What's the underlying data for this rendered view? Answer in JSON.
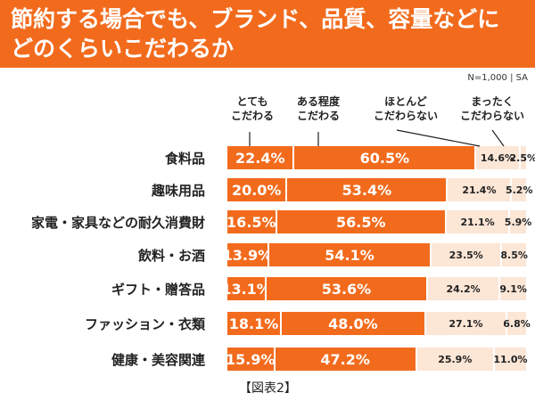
{
  "chart_data": {
    "type": "bar",
    "orientation": "horizontal-stacked",
    "title": "節約する場合でも、ブランド、品質、容量などにどのくらいこだわるか",
    "title_lines": [
      "節約する場合でも、ブランド、品質、容量などに",
      "どのくらいこだわるか"
    ],
    "note": "N=1,000 | SA",
    "figure_label": "【図表2】",
    "categories": [
      "食料品",
      "趣味用品",
      "家電・家具などの耐久消費財",
      "飲料・お酒",
      "ギフト・贈答品",
      "ファッション・衣類",
      "健康・美容関連"
    ],
    "series": [
      {
        "name": "とても こだわる",
        "label_lines": [
          "とても",
          "こだわる"
        ],
        "values": [
          22.4,
          20.0,
          16.5,
          13.9,
          13.1,
          18.1,
          15.9
        ],
        "color": "#f26b1d"
      },
      {
        "name": "ある程度 こだわる",
        "label_lines": [
          "ある程度",
          "こだわる"
        ],
        "values": [
          60.5,
          53.4,
          56.5,
          54.1,
          53.6,
          48.0,
          47.2
        ],
        "color": "#f26b1d"
      },
      {
        "name": "ほとんど こだわらない",
        "label_lines": [
          "ほとんど",
          "こだわらない"
        ],
        "values": [
          14.6,
          21.4,
          21.1,
          23.5,
          24.2,
          27.1,
          25.9
        ],
        "color": "#fce6d6"
      },
      {
        "name": "まったく こだわらない",
        "label_lines": [
          "まったく",
          "こだわらない"
        ],
        "values": [
          2.5,
          5.2,
          5.9,
          8.5,
          9.1,
          6.8,
          11.0
        ],
        "color": "#fce6d6"
      }
    ],
    "xlim": [
      0,
      100
    ],
    "unit": "%"
  }
}
